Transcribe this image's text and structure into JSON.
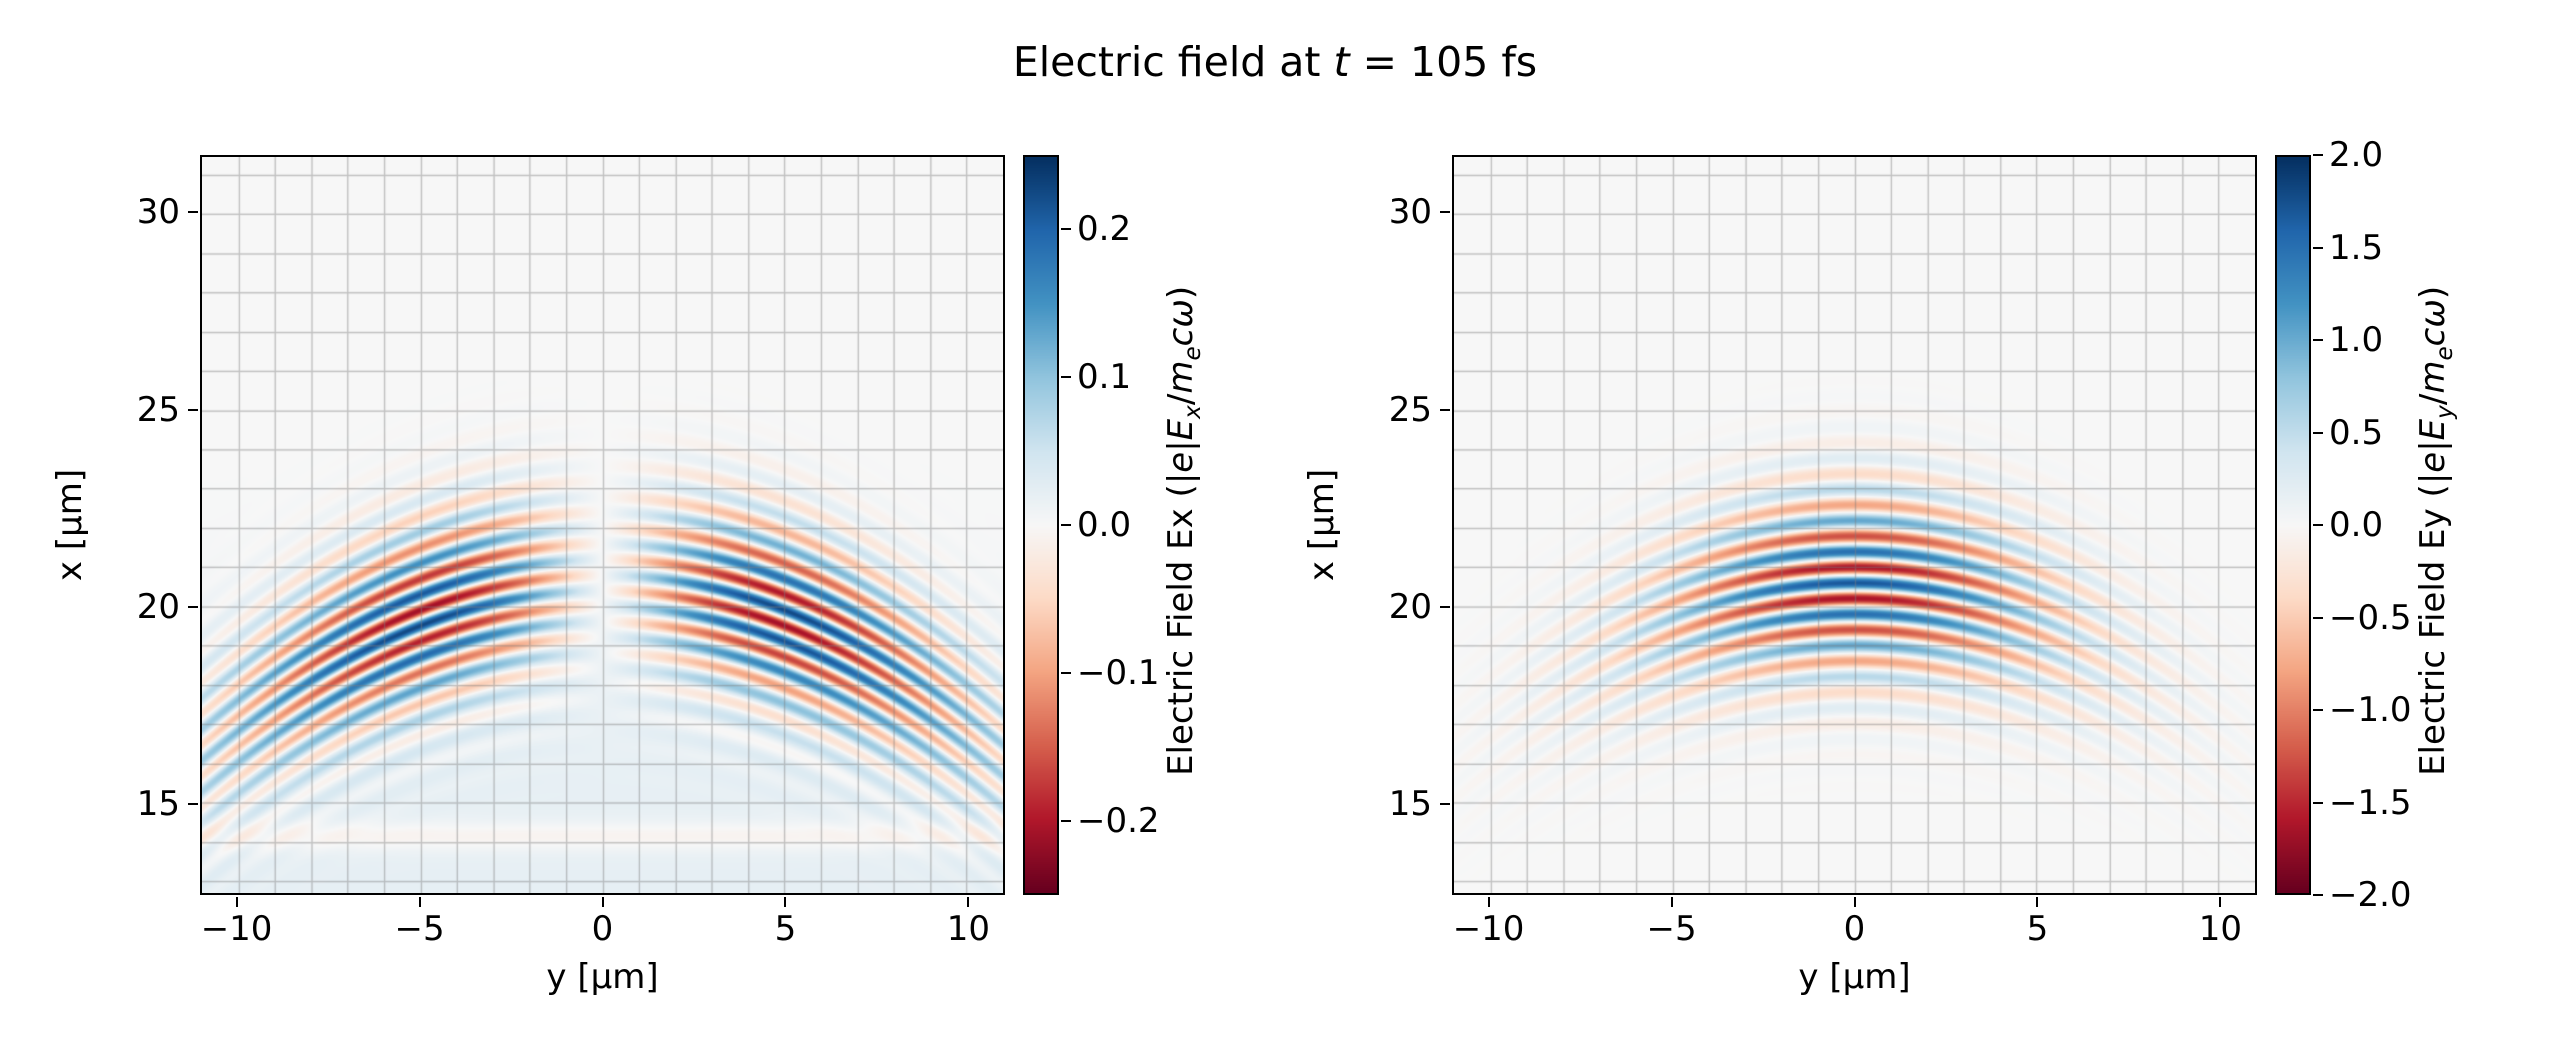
{
  "figure": {
    "title": "Electric field at t = 105 fs",
    "title_segments": [
      {
        "t": "Electric field at "
      },
      {
        "t": "t",
        "italic": true
      },
      {
        "t": " = 105 fs"
      }
    ],
    "background": "#ffffff"
  },
  "style": {
    "colormap": "RdBu",
    "colormap_stops": [
      "#67001f",
      "#b2182b",
      "#d6604d",
      "#f4a582",
      "#fddbc7",
      "#f7f7f7",
      "#d1e5f0",
      "#92c5de",
      "#4393c3",
      "#2166ac",
      "#053061"
    ],
    "grid_color": "#7f7f7f",
    "grid_alpha": 0.45,
    "spine_color": "#000000",
    "tick_color": "#000000",
    "text_color": "#000000"
  },
  "chart_data": [
    {
      "type": "heatmap",
      "series": "Ex",
      "xlabel": "y [μm]",
      "ylabel": "x [μm]",
      "xlim": [
        -11,
        11
      ],
      "ylim": [
        12.7,
        31.45
      ],
      "x_ticks": {
        "values": [
          -10,
          -5,
          0,
          5,
          10
        ],
        "labels": [
          "−10",
          "−5",
          "0",
          "5",
          "10"
        ]
      },
      "y_ticks": {
        "values": [
          15,
          20,
          25,
          30
        ],
        "labels": [
          "15",
          "20",
          "25",
          "30"
        ]
      },
      "grid": {
        "on": true,
        "spacing_um": 1
      },
      "colorbar": {
        "label": "Electric Field Ex (|e|E_x/m_ecω)",
        "label_segments": [
          {
            "t": "Electric Field Ex (|"
          },
          {
            "t": "e",
            "italic": true
          },
          {
            "t": "|"
          },
          {
            "t": "E",
            "italic": true
          },
          {
            "t": "x",
            "sub": true,
            "italic": true
          },
          {
            "t": "/"
          },
          {
            "t": "m",
            "italic": true
          },
          {
            "t": "e",
            "sub": true,
            "italic": true
          },
          {
            "t": "c",
            "italic": true
          },
          {
            "t": "ω",
            "italic": true
          },
          {
            "t": ")"
          }
        ],
        "vmin": -0.25,
        "vmax": 0.25,
        "ticks": {
          "values": [
            0.2,
            0.1,
            0.0,
            -0.1,
            -0.2
          ],
          "labels": [
            "0.2",
            "0.1",
            "0.0",
            "−0.1",
            "−0.2"
          ]
        }
      },
      "field_model": {
        "component": "Ex",
        "description": "Transverse slice of a focused laser pulse; Ex is odd in y with two lobes around y≈±5 μm, a null at y=0, curved wavefronts bending toward smaller x at large |y|, carrier wavelength ≈0.8 μm along x, pulse centered near x≈20.6 μm",
        "amplitude": 0.22,
        "pulse_center_x_um": 20.6,
        "wavelength_um": 0.8,
        "sigma_x_um": 1.6,
        "sigma_y_um": 5.0,
        "wavefront_curvature_um": 14,
        "parity_in_y": "odd",
        "carrier_phase": "sin"
      }
    },
    {
      "type": "heatmap",
      "series": "Ey",
      "xlabel": "y [μm]",
      "ylabel": "x [μm]",
      "xlim": [
        -11,
        11
      ],
      "ylim": [
        12.7,
        31.45
      ],
      "x_ticks": {
        "values": [
          -10,
          -5,
          0,
          5,
          10
        ],
        "labels": [
          "−10",
          "−5",
          "0",
          "5",
          "10"
        ]
      },
      "y_ticks": {
        "values": [
          15,
          20,
          25,
          30
        ],
        "labels": [
          "15",
          "20",
          "25",
          "30"
        ]
      },
      "grid": {
        "on": true,
        "spacing_um": 1
      },
      "colorbar": {
        "label": "Electric Field Ey (|e|E_y/m_ecω)",
        "label_segments": [
          {
            "t": "Electric Field Ey (|"
          },
          {
            "t": "e",
            "italic": true
          },
          {
            "t": "|"
          },
          {
            "t": "E",
            "italic": true
          },
          {
            "t": "y",
            "sub": true,
            "italic": true
          },
          {
            "t": "/"
          },
          {
            "t": "m",
            "italic": true
          },
          {
            "t": "e",
            "sub": true,
            "italic": true
          },
          {
            "t": "c",
            "italic": true
          },
          {
            "t": "ω",
            "italic": true
          },
          {
            "t": ")"
          }
        ],
        "vmin": -2.0,
        "vmax": 2.0,
        "ticks": {
          "values": [
            2.0,
            1.5,
            1.0,
            0.5,
            0.0,
            -0.5,
            -1.0,
            -1.5,
            -2.0
          ],
          "labels": [
            "2.0",
            "1.5",
            "1.0",
            "0.5",
            "0.0",
            "−0.5",
            "−1.0",
            "−1.5",
            "−2.0"
          ]
        }
      },
      "field_model": {
        "component": "Ey",
        "description": "Main transverse field of the laser pulse; even in y with maximum at y=0, alternating red/blue horizontal stripes (λ≈0.8 μm) between x≈17 and x≈24 μm, curved wavefronts, fading by |y|≈8 μm",
        "amplitude": 1.7,
        "pulse_center_x_um": 20.6,
        "wavelength_um": 0.8,
        "sigma_x_um": 1.6,
        "sigma_y_um": 4.0,
        "wavefront_curvature_um": 14,
        "parity_in_y": "even",
        "carrier_phase": "cos"
      }
    }
  ]
}
